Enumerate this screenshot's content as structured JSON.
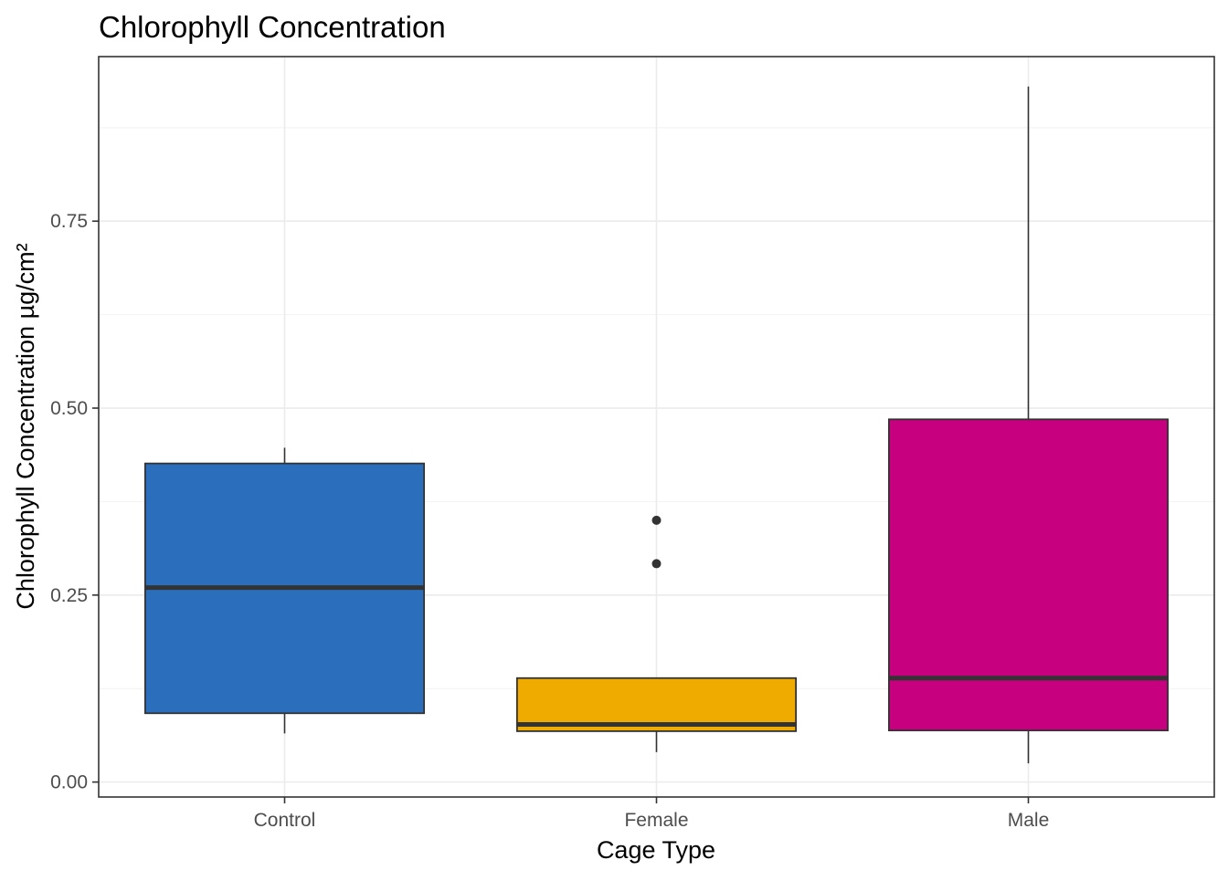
{
  "chart_data": {
    "type": "box",
    "title": "Chlorophyll Concentration",
    "xlabel": "Cage Type",
    "ylabel": "Chlorophyll Concentration µg/cm²",
    "ylim": [
      -0.02,
      0.97
    ],
    "yticks": [
      0.0,
      0.25,
      0.5,
      0.75
    ],
    "ytick_labels": [
      "0.00",
      "0.25",
      "0.50",
      "0.75"
    ],
    "y_minor_ticks": [
      0.125,
      0.375,
      0.625,
      0.875
    ],
    "grid": true,
    "legend": "none",
    "categories": [
      "Control",
      "Female",
      "Male"
    ],
    "boxes": [
      {
        "category": "Control",
        "color": "#2b6ebb",
        "whisker_low": 0.065,
        "q1": 0.092,
        "median": 0.26,
        "q3": 0.426,
        "whisker_high": 0.447,
        "outliers": []
      },
      {
        "category": "Female",
        "color": "#efab00",
        "whisker_low": 0.04,
        "q1": 0.068,
        "median": 0.077,
        "q3": 0.139,
        "whisker_high": 0.139,
        "outliers": [
          0.292,
          0.35
        ]
      },
      {
        "category": "Male",
        "color": "#c6007e",
        "whisker_low": 0.025,
        "q1": 0.069,
        "median": 0.139,
        "q3": 0.485,
        "whisker_high": 0.93,
        "outliers": []
      }
    ]
  }
}
